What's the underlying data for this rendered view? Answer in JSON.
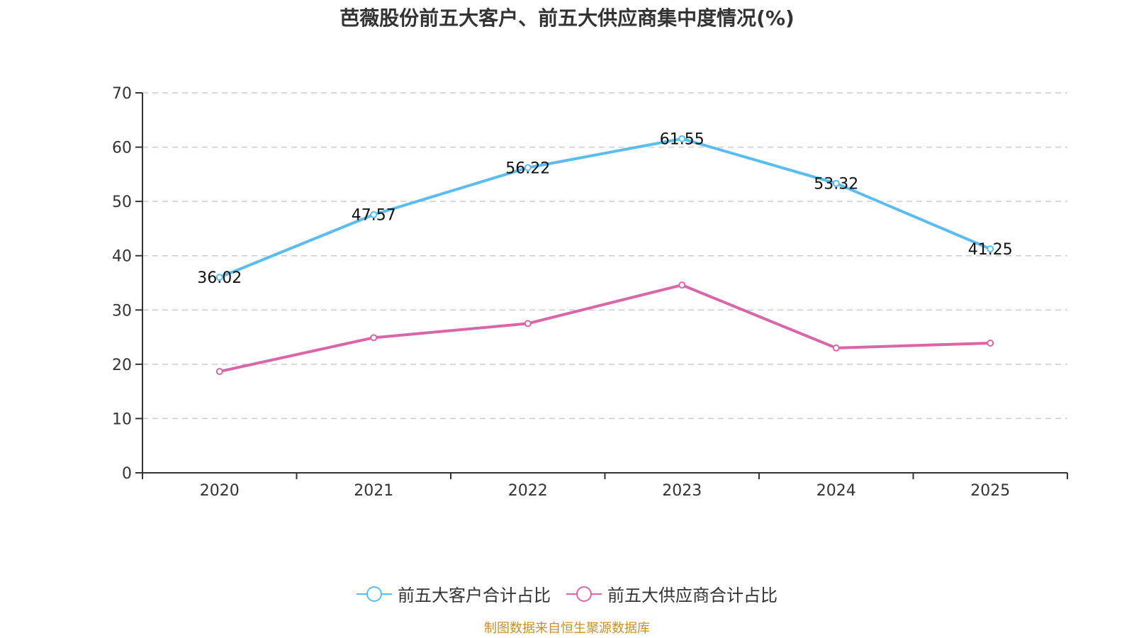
{
  "chart_data": {
    "type": "line",
    "title": "芭薇股份前五大客户、前五大供应商集中度情况(%)",
    "xlabel": "",
    "ylabel": "",
    "categories": [
      "2020",
      "2021",
      "2022",
      "2023",
      "2024",
      "2025"
    ],
    "ylim": [
      0,
      70
    ],
    "yticks": [
      0,
      10,
      20,
      30,
      40,
      50,
      60,
      70
    ],
    "grid": true,
    "legend_position": "bottom-center",
    "series": [
      {
        "name": "前五大客户合计占比",
        "color": "#5bbcf0",
        "values": [
          36.02,
          47.57,
          56.22,
          61.55,
          53.32,
          41.25
        ],
        "show_labels": true
      },
      {
        "name": "前五大供应商合计占比",
        "color": "#d966a8",
        "values": [
          18.67,
          24.9,
          27.5,
          34.6,
          23.0,
          23.9
        ],
        "show_labels": false
      }
    ]
  },
  "footer": {
    "source": "制图数据来自恒生聚源数据库"
  }
}
